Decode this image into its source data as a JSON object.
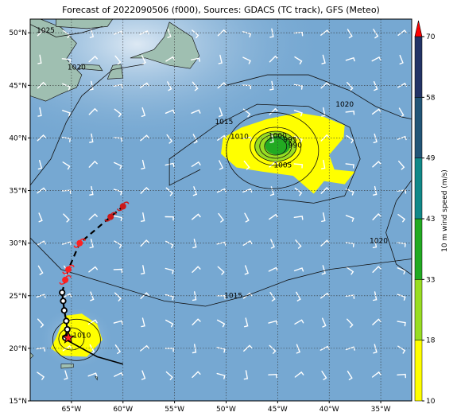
{
  "title": "Forecast of 2022090506 (f000), Sources: GDACS (TC track), GFS (Meteo)",
  "axes": {
    "lon_ticks": [
      {
        "v": -65,
        "label": "65°W"
      },
      {
        "v": -60,
        "label": "60°W"
      },
      {
        "v": -55,
        "label": "55°W"
      },
      {
        "v": -50,
        "label": "50°W"
      },
      {
        "v": -45,
        "label": "45°W"
      },
      {
        "v": -40,
        "label": "40°W"
      },
      {
        "v": -35,
        "label": "35°W"
      }
    ],
    "lat_ticks": [
      {
        "v": 15,
        "label": "15°N"
      },
      {
        "v": 20,
        "label": "20°N"
      },
      {
        "v": 25,
        "label": "25°N"
      },
      {
        "v": 30,
        "label": "30°N"
      },
      {
        "v": 35,
        "label": "35°N"
      },
      {
        "v": 40,
        "label": "40°N"
      },
      {
        "v": 45,
        "label": "45°N"
      },
      {
        "v": 50,
        "label": "50°N"
      }
    ],
    "lon_range": [
      -69,
      -32
    ],
    "lat_range": [
      15,
      51.3
    ],
    "grid": "dotted"
  },
  "colorbar": {
    "label": "10 m wind speed (m/s)",
    "ticks": [
      "10",
      "18",
      "33",
      "43",
      "49",
      "58",
      "70"
    ],
    "colors": [
      "#ffff00",
      "#99dd22",
      "#22aa22",
      "#118888",
      "#225577",
      "#223366",
      "#ff0000"
    ]
  },
  "isobars": [
    {
      "label": "1025",
      "lon": -67.5,
      "lat": 50.0
    },
    {
      "label": "1020",
      "lon": -64.5,
      "lat": 46.5
    },
    {
      "label": "1015",
      "lon": -50.2,
      "lat": 41.3
    },
    {
      "label": "1010",
      "lon": -48.7,
      "lat": 39.9
    },
    {
      "label": "1005",
      "lon": -44.5,
      "lat": 37.2
    },
    {
      "label": "1000",
      "lon": -45.0,
      "lat": 40.0
    },
    {
      "label": "995",
      "lon": -43.8,
      "lat": 39.6
    },
    {
      "label": "990",
      "lon": -43.3,
      "lat": 39.1
    },
    {
      "label": "1020",
      "lon": -38.5,
      "lat": 43.0
    },
    {
      "label": "1020",
      "lon": -35.2,
      "lat": 30.0
    },
    {
      "label": "1015",
      "lon": -49.3,
      "lat": 24.8
    },
    {
      "label": "1010",
      "lon": -64.0,
      "lat": 21.0
    }
  ],
  "tc_track": {
    "observed": [
      [
        -65.6,
        21.0
      ],
      [
        -65.4,
        21.8
      ],
      [
        -65.5,
        22.6
      ],
      [
        -65.7,
        23.6
      ],
      [
        -65.8,
        24.5
      ],
      [
        -65.9,
        25.3
      ]
    ],
    "forecast": [
      [
        -65.6,
        26.5
      ],
      [
        -65.3,
        27.5
      ],
      [
        -64.2,
        30.0
      ],
      [
        -61.2,
        32.5
      ],
      [
        -60.0,
        33.5
      ]
    ],
    "current": [
      -65.3,
      21.0
    ],
    "past_line": [
      [
        -65.5,
        20.8
      ],
      [
        -62.5,
        19.2
      ],
      [
        -60.0,
        18.5
      ]
    ]
  }
}
